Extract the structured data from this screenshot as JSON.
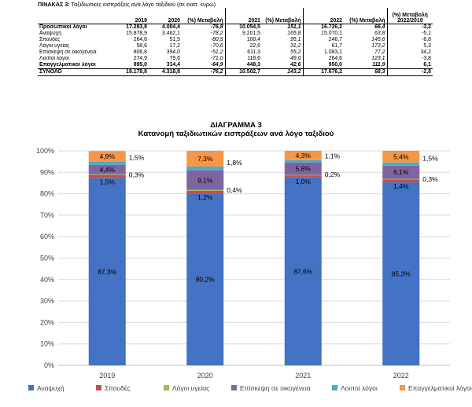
{
  "table": {
    "title_bold": "ΠΙΝΑΚΑΣ 3:",
    "title_rest": " Ταξιδιωτικές εισπράξεις ανά λόγο ταξιδιού (σε εκατ. ευρώ)",
    "headers": [
      "",
      "2019",
      "2020",
      "(%) Μεταβολή",
      "2021",
      "(%) Μεταβολή",
      "2022",
      "(%) Μεταβολή",
      "(%) Μεταβολή 2022/2019"
    ],
    "rows": [
      [
        "Προσωπικοί λόγοι",
        "17.283,8",
        "4.004,4",
        "-76,8",
        "10.054,5",
        "151,1",
        "16.726,2",
        "66,4",
        "-3,2"
      ],
      [
        "Αναψυχή",
        "15.878,9",
        "3.462,1",
        "-78,2",
        "9.201,5",
        "165,8",
        "15.070,1",
        "63,8",
        "-5,1"
      ],
      [
        "Σπουδές",
        "264,6",
        "51,5",
        "-80,5",
        "100,4",
        "95,1",
        "246,7",
        "145,6",
        "-6,8"
      ],
      [
        "Λόγοι υγείας",
        "58,6",
        "17,2",
        "-70,6",
        "22,6",
        "31,2",
        "61,7",
        "173,2",
        "5,3"
      ],
      [
        "Επίσκεψη σε οικογένεια",
        "806,8",
        "394,0",
        "-51,2",
        "611,3",
        "55,2",
        "1.083,1",
        "77,2",
        "34,2"
      ],
      [
        "Λοιποί λόγοι",
        "274,9",
        "79,6",
        "-71,0",
        "118,6",
        "49,0",
        "264,6",
        "123,1",
        "-3,8"
      ],
      [
        "Επαγγελματικοί λόγοι",
        "895,0",
        "314,4",
        "-64,9",
        "448,3",
        "42,6",
        "950,0",
        "111,9",
        "6,1"
      ],
      [
        "ΣΥΝΟΛΟ",
        "18.178,8",
        "4.318,8",
        "-76,2",
        "10.502,7",
        "143,2",
        "17.676,2",
        "68,3",
        "-2,8"
      ]
    ]
  },
  "chart_title_1": "ΔΙΑΓΡΑΜΜΑ 3",
  "chart_title_2": "Κατανομή ταξιδιωτικών εισπράξεων ανά λόγο ταξιδιού",
  "chart_data": {
    "type": "bar",
    "stacked": true,
    "categories": [
      "2019",
      "2020",
      "2021",
      "2022"
    ],
    "ylim": [
      0,
      100
    ],
    "y_ticks": [
      "0%",
      "10%",
      "20%",
      "30%",
      "40%",
      "50%",
      "60%",
      "70%",
      "80%",
      "90%",
      "100%"
    ],
    "legend_position": "bottom",
    "series": [
      {
        "name": "Αναψυχή",
        "color": "#4472c4",
        "values": [
          87.3,
          80.2,
          87.6,
          85.3
        ],
        "labels": [
          "87,3%",
          "80,2%",
          "87,6%",
          "85,3%"
        ]
      },
      {
        "name": "Σπουδές",
        "color": "#c0504d",
        "values": [
          1.5,
          1.2,
          1.0,
          1.4
        ],
        "labels": [
          "1,5%",
          "1,2%",
          "1,0%",
          "1,4%"
        ]
      },
      {
        "name": "Λόγοι υγείας",
        "color": "#9bbb59",
        "values": [
          0.3,
          0.4,
          0.2,
          0.3
        ],
        "labels": [
          "0,3%",
          "0,4%",
          "0,2%",
          "0,3%"
        ]
      },
      {
        "name": "Επίσκεψη σε οικογένεια",
        "color": "#8064a2",
        "values": [
          4.4,
          9.1,
          5.8,
          6.1
        ],
        "labels": [
          "4,4%",
          "9,1%",
          "5,8%",
          "6,1%"
        ]
      },
      {
        "name": "Λοιποί λόγοι",
        "color": "#4bacc6",
        "values": [
          1.5,
          1.8,
          1.1,
          1.5
        ],
        "labels": [
          "1,5%",
          "1,8%",
          "1,1%",
          "1,5%"
        ]
      },
      {
        "name": "Επαγγελματικοί λόγοι",
        "color": "#f79646",
        "values": [
          4.9,
          7.3,
          4.3,
          5.4
        ],
        "labels": [
          "4,9%",
          "7,3%",
          "4,3%",
          "5,4%"
        ]
      }
    ]
  }
}
